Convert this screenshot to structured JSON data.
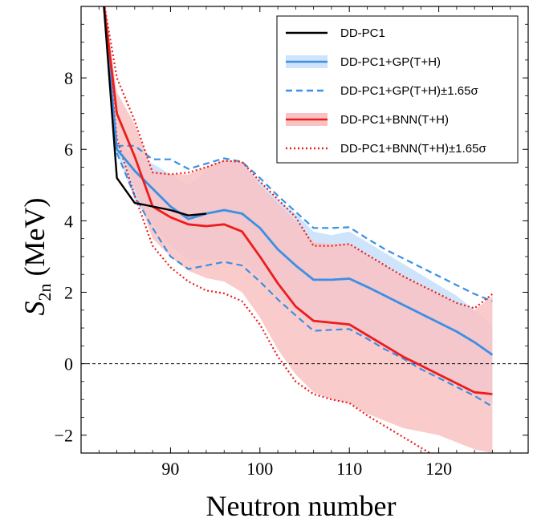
{
  "chart_data": {
    "type": "line",
    "xlabel": "Neutron number",
    "ylabel_main": "S",
    "ylabel_sub": "2n",
    "ylabel_unit": " (MeV)",
    "xlim": [
      80,
      130
    ],
    "ylim": [
      -2.5,
      10
    ],
    "xticks": [
      90,
      100,
      110,
      120
    ],
    "yticks": [
      -2,
      0,
      2,
      4,
      6,
      8
    ],
    "ytick_labels": [
      "−2",
      "0",
      "2",
      "4",
      "6",
      "8"
    ],
    "reference_line": {
      "y": 0,
      "style": "dashed",
      "color": "#000000"
    },
    "legend_position": "top-right",
    "series": [
      {
        "name": "DD-PC1",
        "color": "#000000",
        "style": "solid",
        "x": [
          82.5,
          84,
          86,
          88,
          90,
          92,
          94
        ],
        "y": [
          10.2,
          5.2,
          4.5,
          4.4,
          4.3,
          4.15,
          4.2
        ]
      },
      {
        "name": "DD-PC1+GP(T+H)",
        "color": "#3b8fe6",
        "style": "solid",
        "band_color": "#cfe4fa",
        "x": [
          82.5,
          84,
          86,
          88,
          90,
          92,
          94,
          96,
          98,
          100,
          102,
          104,
          106,
          108,
          110,
          112,
          114,
          116,
          118,
          120,
          122,
          124,
          126
        ],
        "y": [
          10.2,
          6.0,
          5.4,
          4.9,
          4.4,
          4.05,
          4.2,
          4.3,
          4.2,
          3.8,
          3.2,
          2.75,
          2.35,
          2.35,
          2.38,
          2.15,
          1.9,
          1.65,
          1.4,
          1.15,
          0.9,
          0.6,
          0.25
        ],
        "band_lower": [
          10.2,
          5.9,
          4.6,
          3.9,
          3.3,
          2.9,
          2.9,
          2.9,
          2.9,
          2.4,
          1.9,
          1.5,
          1.1,
          1.0,
          1.0,
          0.7,
          0.4,
          0.1,
          -0.2,
          -0.4,
          -0.6,
          -0.9,
          -1.1
        ],
        "band_upper": [
          10.2,
          6.1,
          5.9,
          5.6,
          5.3,
          5.0,
          5.4,
          5.7,
          5.6,
          5.1,
          4.6,
          4.2,
          3.7,
          3.6,
          3.7,
          3.4,
          3.1,
          2.8,
          2.5,
          2.2,
          1.9,
          1.5,
          1.1
        ]
      },
      {
        "name": "DD-PC1+GP(T+H)±1.65σ",
        "color": "#3b8fe6",
        "style": "dashed",
        "upper": {
          "x": [
            84,
            86,
            88,
            90,
            92,
            94,
            96,
            98,
            100,
            102,
            104,
            106,
            108,
            110,
            112,
            114,
            116,
            118,
            120,
            122,
            124,
            126
          ],
          "y": [
            6.1,
            6.1,
            5.72,
            5.72,
            5.45,
            5.6,
            5.75,
            5.65,
            5.2,
            4.7,
            4.25,
            3.8,
            3.8,
            3.82,
            3.5,
            3.2,
            2.95,
            2.7,
            2.45,
            2.2,
            1.95,
            1.75
          ]
        },
        "lower": {
          "x": [
            84,
            86,
            88,
            90,
            92,
            94,
            96,
            98,
            100,
            102,
            104,
            106,
            108,
            110,
            112,
            114,
            116,
            118,
            120,
            122,
            124,
            126
          ],
          "y": [
            5.9,
            4.7,
            3.8,
            3.0,
            2.65,
            2.75,
            2.85,
            2.75,
            2.3,
            1.8,
            1.35,
            0.92,
            0.95,
            0.97,
            0.7,
            0.4,
            0.15,
            -0.15,
            -0.4,
            -0.65,
            -0.9,
            -1.2
          ]
        }
      },
      {
        "name": "DD-PC1+BNN(T+H)",
        "color": "#ee1c1c",
        "style": "solid",
        "band_color": "#f9c2c2",
        "x": [
          82.5,
          84,
          86,
          88,
          90,
          92,
          94,
          96,
          98,
          100,
          102,
          104,
          106,
          108,
          110,
          112,
          114,
          116,
          118,
          120,
          122,
          124,
          126
        ],
        "y": [
          10.2,
          7.0,
          5.8,
          4.4,
          4.1,
          3.9,
          3.85,
          3.9,
          3.7,
          3.0,
          2.25,
          1.6,
          1.2,
          1.15,
          1.1,
          0.8,
          0.5,
          0.2,
          -0.05,
          -0.3,
          -0.55,
          -0.8,
          -0.85
        ],
        "band_lower": [
          10.2,
          6.3,
          4.9,
          3.5,
          3.0,
          2.6,
          2.4,
          2.3,
          2.0,
          1.3,
          0.4,
          -0.3,
          -0.8,
          -1.0,
          -1.1,
          -1.4,
          -1.6,
          -1.8,
          -1.9,
          -2.0,
          -2.2,
          -2.4,
          -2.5
        ],
        "band_upper": [
          10.2,
          7.6,
          6.7,
          5.4,
          5.3,
          5.3,
          5.5,
          5.7,
          5.65,
          5.0,
          4.5,
          4.0,
          3.4,
          3.35,
          3.35,
          3.05,
          2.75,
          2.45,
          2.2,
          1.95,
          1.7,
          1.5,
          1.9
        ]
      },
      {
        "name": "DD-PC1+BNN(T+H)±1.65σ",
        "color": "#ee1c1c",
        "style": "dotted",
        "upper": {
          "x": [
            82.5,
            84,
            86,
            88,
            90,
            92,
            94,
            96,
            98,
            100,
            102,
            104,
            106,
            108,
            110,
            112,
            114,
            116,
            118,
            120,
            122,
            124,
            126
          ],
          "y": [
            10.2,
            8.0,
            6.8,
            5.35,
            5.3,
            5.35,
            5.5,
            5.68,
            5.65,
            5.1,
            4.6,
            4.1,
            3.3,
            3.3,
            3.35,
            3.05,
            2.75,
            2.45,
            2.2,
            1.95,
            1.7,
            1.55,
            1.95
          ]
        },
        "lower": {
          "x": [
            82.5,
            84,
            86,
            88,
            90,
            92,
            94,
            96,
            98,
            100,
            102,
            104,
            106,
            108,
            110,
            112,
            114,
            116,
            118,
            119
          ],
          "y": [
            10.2,
            6.3,
            4.7,
            3.3,
            2.7,
            2.3,
            2.05,
            1.97,
            1.75,
            1.1,
            0.2,
            -0.5,
            -0.85,
            -1.0,
            -1.1,
            -1.45,
            -1.75,
            -2.05,
            -2.35,
            -2.5
          ]
        }
      }
    ]
  }
}
